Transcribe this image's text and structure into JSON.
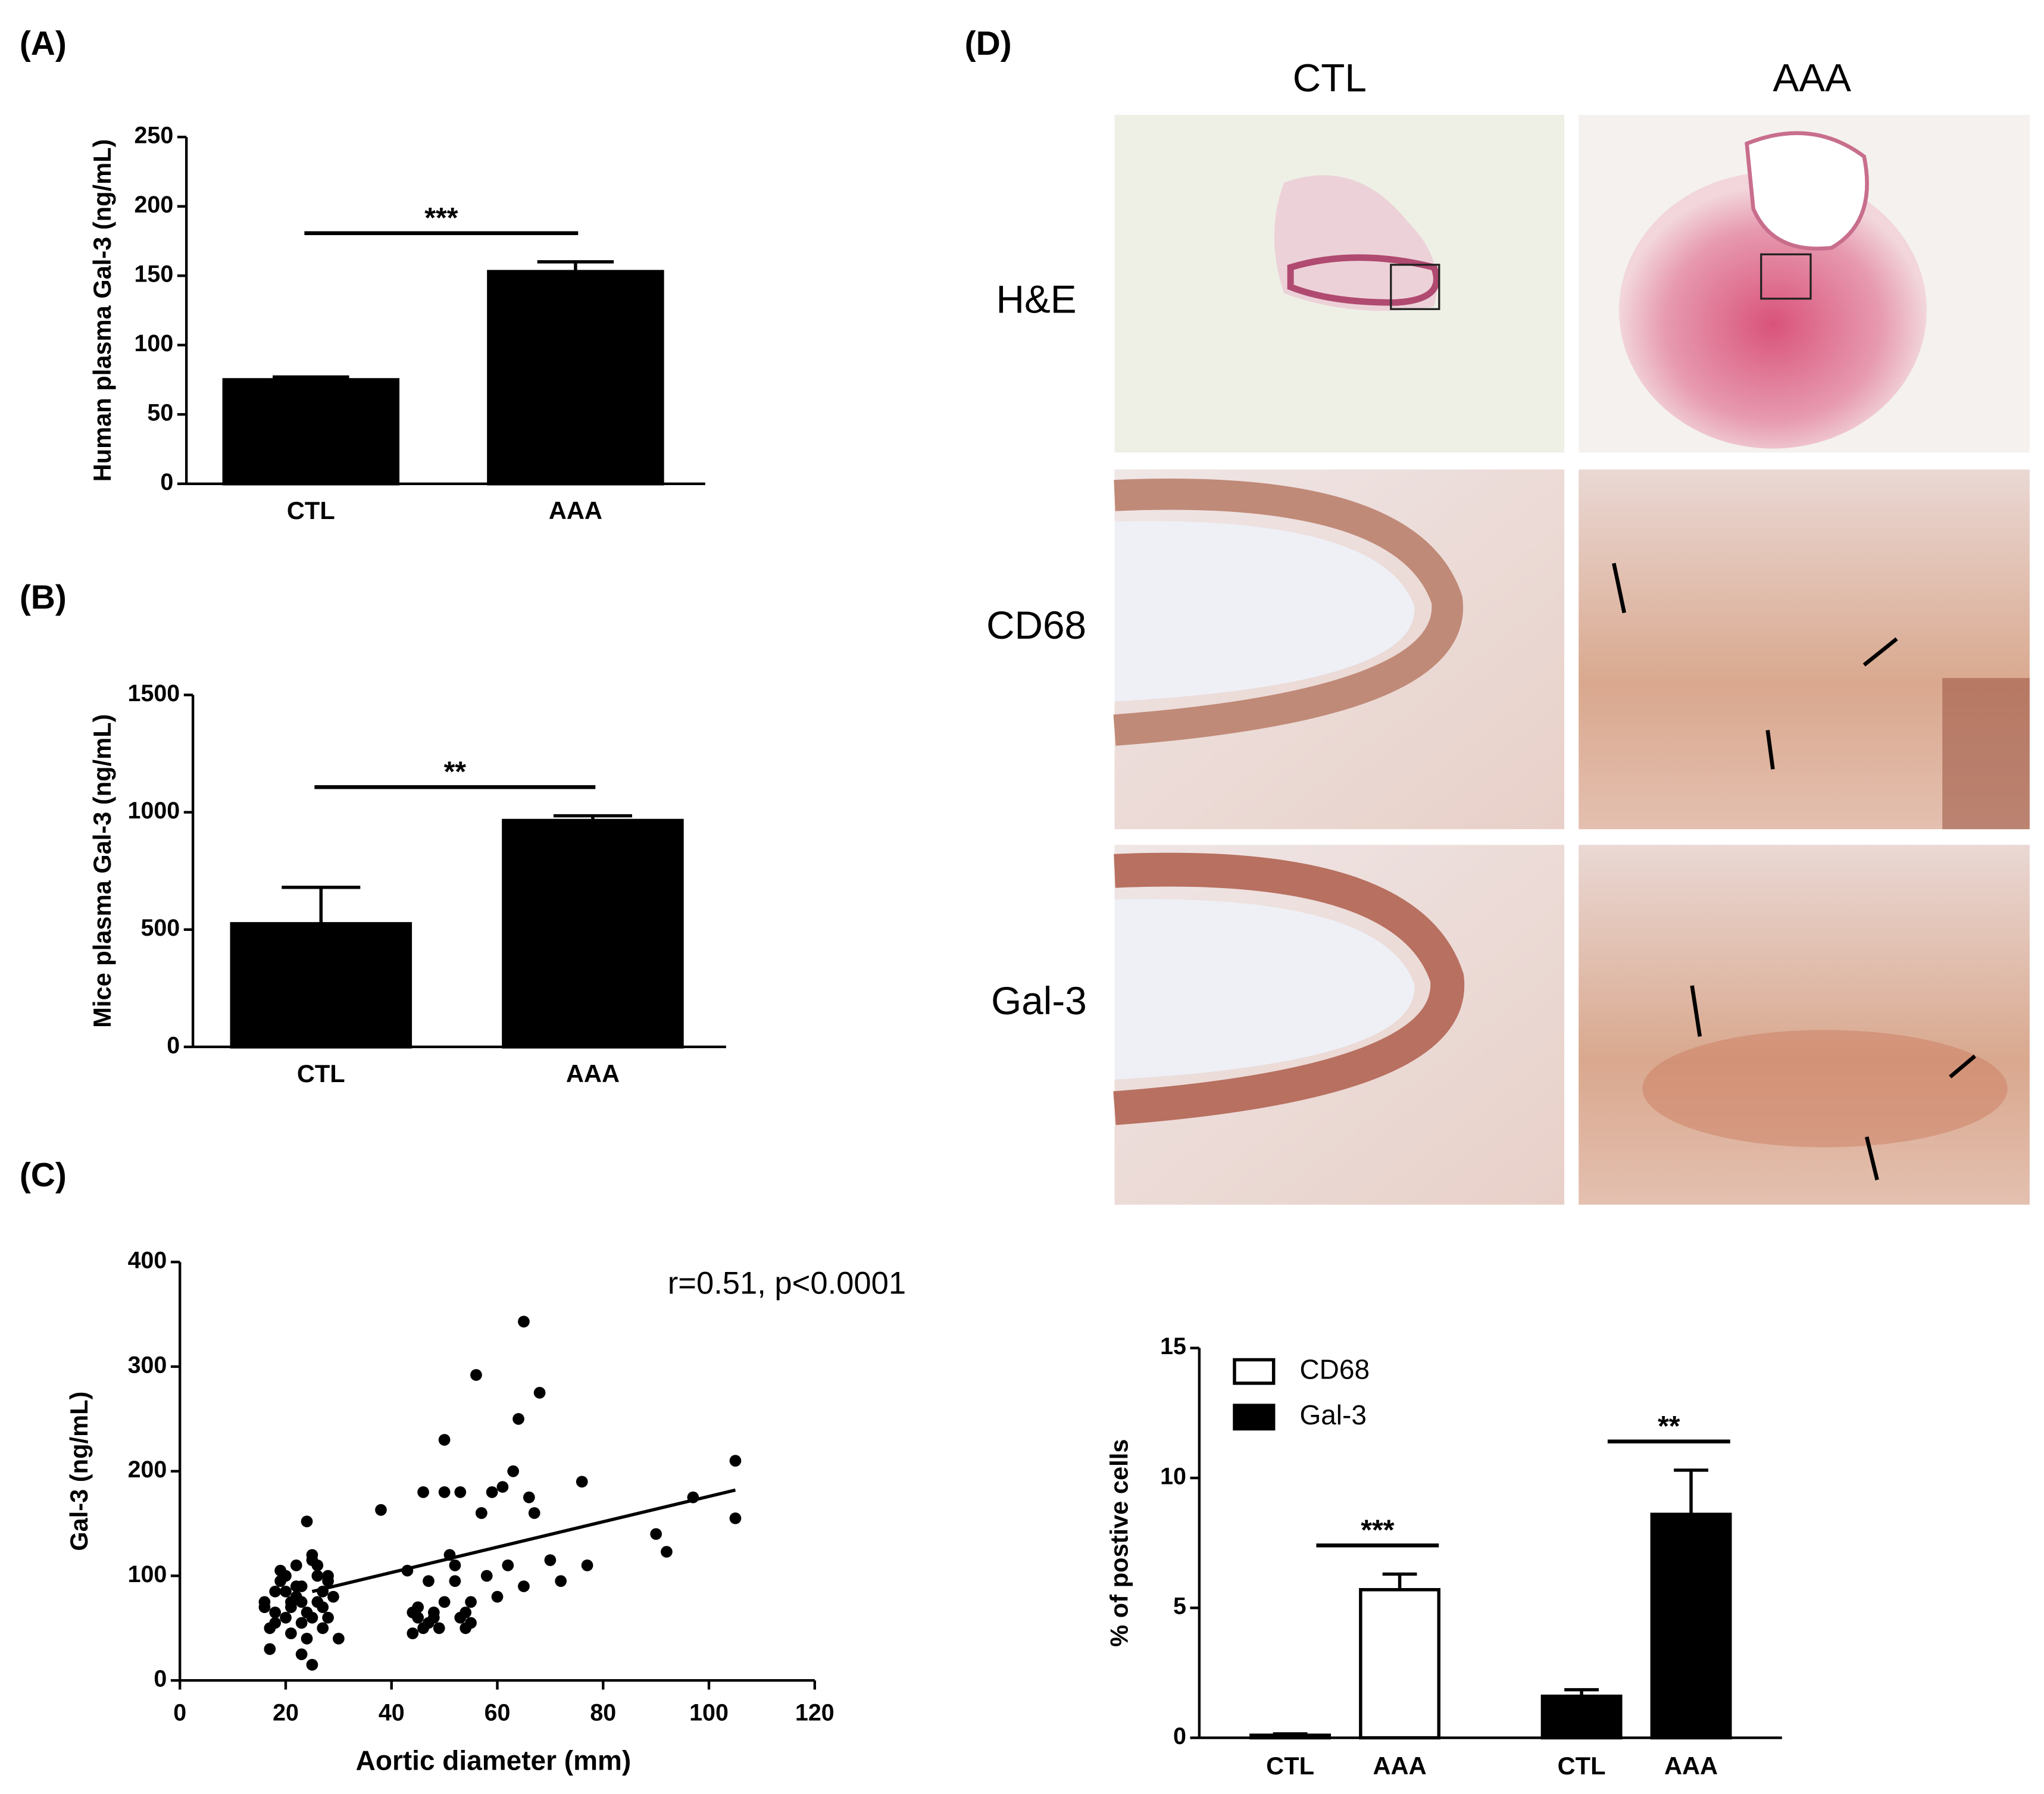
{
  "chart_data": [
    {
      "type": "bar",
      "label": "(A)",
      "ylabel": "Human plasma Gal-3 (ng/mL)",
      "categories": [
        "CTL",
        "AAA"
      ],
      "values": [
        75,
        153
      ],
      "errors": [
        2,
        7
      ],
      "color": "#000000",
      "ylim": [
        0,
        250
      ],
      "yticks": [
        0,
        50,
        100,
        150,
        200,
        250
      ],
      "significance": "***"
    },
    {
      "type": "bar",
      "label": "(B)",
      "ylabel": "Mice plasma Gal-3 (ng/mL)",
      "categories": [
        "CTL",
        "AAA"
      ],
      "values": [
        525,
        965
      ],
      "errors": [
        155,
        20
      ],
      "color": "#000000",
      "ylim": [
        0,
        1500
      ],
      "yticks": [
        0,
        500,
        1000,
        1500
      ],
      "significance": "**"
    },
    {
      "type": "scatter",
      "label": "(C)",
      "ylabel": "Gal-3 (ng/mL)",
      "xlabel": "Aortic diameter (mm)",
      "annotation": "r=0.51, p<0.0001",
      "color": "#000000",
      "x": [
        16,
        17,
        18,
        18,
        19,
        20,
        20,
        21,
        21,
        22,
        22,
        23,
        23,
        24,
        24,
        25,
        25,
        26,
        26,
        27,
        27,
        28,
        28,
        29,
        30,
        17,
        19,
        21,
        23,
        25,
        27,
        22,
        24,
        26,
        20,
        18,
        23,
        25,
        28,
        16,
        38,
        43,
        44,
        45,
        46,
        47,
        48,
        49,
        50,
        50,
        51,
        52,
        53,
        54,
        55,
        55,
        56,
        57,
        58,
        59,
        60,
        61,
        62,
        63,
        64,
        65,
        65,
        66,
        67,
        68,
        70,
        72,
        76,
        77,
        45,
        48,
        52,
        54,
        44,
        46,
        50,
        53,
        57,
        47,
        90,
        92,
        97,
        105,
        105
      ],
      "values": [
        70,
        30,
        85,
        55,
        95,
        60,
        100,
        75,
        45,
        110,
        80,
        25,
        90,
        65,
        152,
        120,
        15,
        100,
        75,
        85,
        50,
        95,
        60,
        80,
        40,
        50,
        105,
        70,
        55,
        115,
        70,
        90,
        40,
        110,
        85,
        65,
        75,
        60,
        100,
        75,
        163,
        105,
        45,
        60,
        180,
        55,
        65,
        50,
        230,
        180,
        120,
        95,
        180,
        65,
        75,
        55,
        292,
        160,
        100,
        180,
        80,
        185,
        110,
        200,
        250,
        343,
        90,
        175,
        160,
        275,
        115,
        95,
        190,
        110,
        70,
        60,
        110,
        50,
        65,
        50,
        75,
        60,
        160,
        95,
        140,
        123,
        175,
        210,
        155
      ],
      "fit_line": {
        "x": [
          25,
          105
        ],
        "values": [
          85,
          182
        ]
      },
      "xlim": [
        0,
        120
      ],
      "xticks": [
        0,
        20,
        40,
        60,
        80,
        100,
        120
      ],
      "ylim": [
        0,
        400
      ],
      "yticks": [
        0,
        100,
        200,
        300,
        400
      ]
    },
    {
      "type": "bar",
      "ylabel": "% of postive cells",
      "categories": [
        "CTL",
        "AAA"
      ],
      "legend": "top-left",
      "series": [
        {
          "name": "CD68",
          "color": "#ffffff",
          "values": [
            0.1,
            5.7
          ],
          "errors": [
            0.05,
            0.6
          ],
          "significance": "***"
        },
        {
          "name": "Gal-3",
          "color": "#000000",
          "values": [
            1.6,
            8.6
          ],
          "errors": [
            0.25,
            1.7
          ],
          "significance": "**"
        }
      ],
      "ylim": [
        0,
        15
      ],
      "yticks": [
        0,
        5,
        10,
        15
      ]
    }
  ],
  "histology": {
    "label": "(D)",
    "columns": [
      "CTL",
      "AAA"
    ],
    "rows": [
      "H&E",
      "CD68",
      "Gal-3"
    ]
  }
}
